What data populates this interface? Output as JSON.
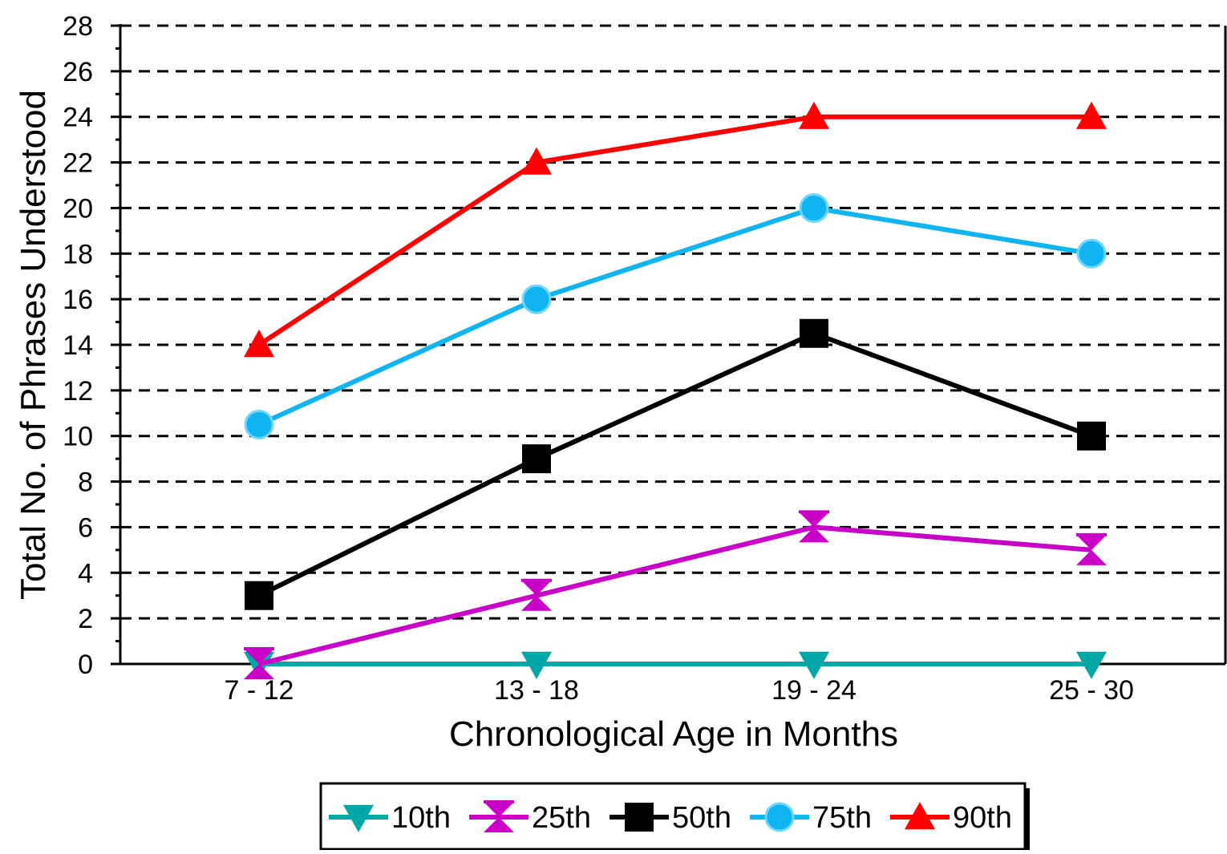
{
  "chart_data": {
    "type": "line",
    "title": "",
    "xlabel": "Chronological Age in Months",
    "ylabel": "Total No. of Phrases Understood",
    "categories": [
      "7 - 12",
      "13 - 18",
      "19 - 24",
      "25 - 30"
    ],
    "ylim": [
      0,
      28
    ],
    "yticks": [
      0,
      2,
      4,
      6,
      8,
      10,
      12,
      14,
      16,
      18,
      20,
      22,
      24,
      26,
      28
    ],
    "grid": "dashed horizontal",
    "legend_position": "bottom",
    "series": [
      {
        "name": "10th",
        "values": [
          0,
          0,
          0,
          0
        ],
        "color": "#00a7a7",
        "marker": "triangle-down"
      },
      {
        "name": "25th",
        "values": [
          0,
          3,
          6,
          5
        ],
        "color": "#c800c8",
        "marker": "hourglass"
      },
      {
        "name": "50th",
        "values": [
          3,
          9,
          14.5,
          10
        ],
        "color": "#000000",
        "marker": "square"
      },
      {
        "name": "75th",
        "values": [
          10.5,
          16,
          20,
          18
        ],
        "color": "#10b4f0",
        "marker": "circle"
      },
      {
        "name": "90th",
        "values": [
          14,
          22,
          24,
          24
        ],
        "color": "#ff0000",
        "marker": "triangle-up"
      }
    ]
  }
}
